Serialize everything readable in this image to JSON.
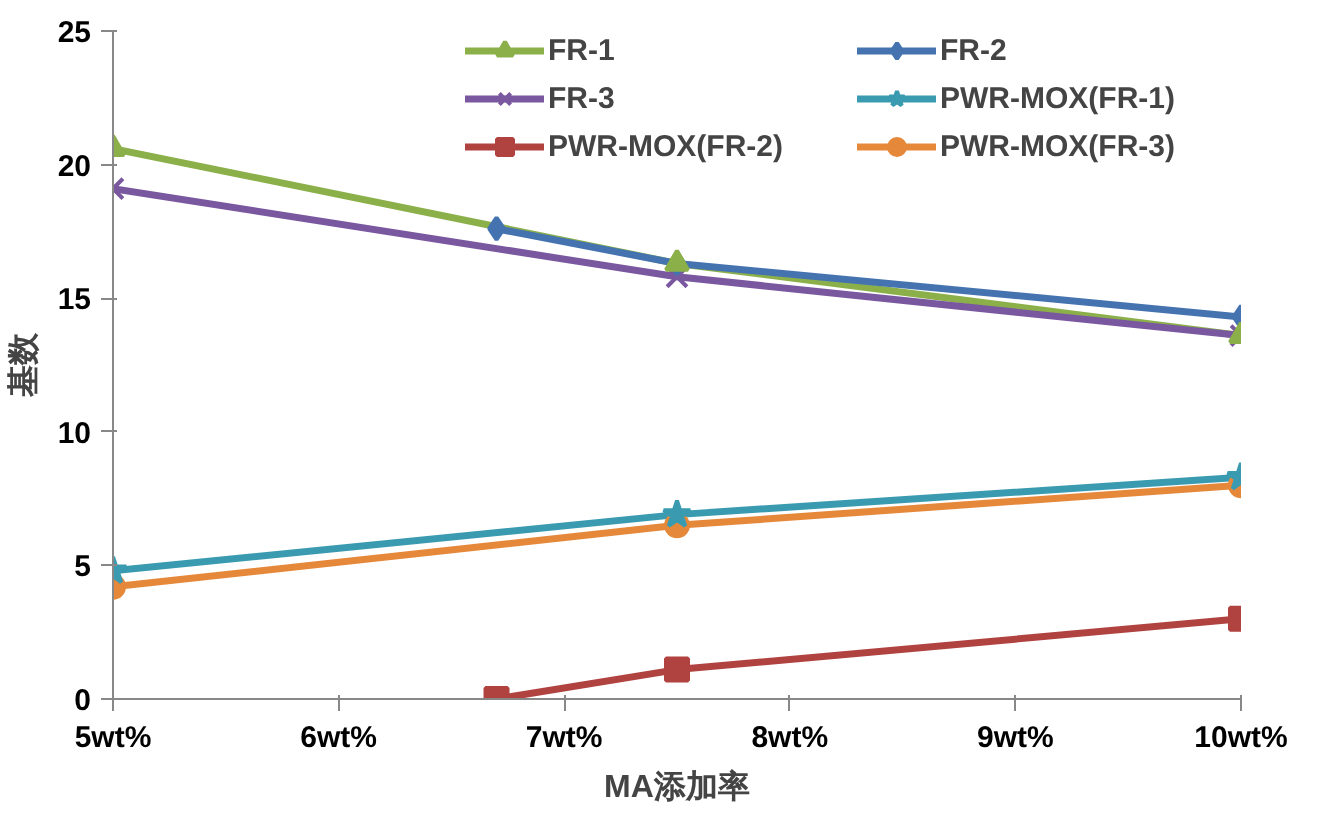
{
  "chart_data": {
    "type": "line",
    "xlabel": "MA添加率",
    "ylabel": "基数",
    "xlim": [
      5,
      10
    ],
    "ylim": [
      0,
      25
    ],
    "xticks": [
      {
        "value": 5,
        "label": "5wt%"
      },
      {
        "value": 6,
        "label": "6wt%"
      },
      {
        "value": 7,
        "label": "7wt%"
      },
      {
        "value": 8,
        "label": "8wt%"
      },
      {
        "value": 9,
        "label": "9wt%"
      },
      {
        "value": 10,
        "label": "10wt%"
      }
    ],
    "yticks": [
      0,
      5,
      10,
      15,
      20,
      25
    ],
    "grid": false,
    "legend": "top right",
    "line_style": "solid",
    "series": [
      {
        "name": "FR-1",
        "color": "#8bb04a",
        "marker": "triangle",
        "x": [
          5,
          7.5,
          10
        ],
        "values": [
          20.6,
          16.3,
          13.6
        ]
      },
      {
        "name": "FR-2",
        "color": "#4573b0",
        "marker": "diamond",
        "x": [
          6.7,
          7.5,
          10
        ],
        "values": [
          17.6,
          16.3,
          14.3
        ]
      },
      {
        "name": "FR-3",
        "color": "#7a58a0",
        "marker": "cross",
        "x": [
          5,
          7.5,
          10
        ],
        "values": [
          19.1,
          15.8,
          13.6
        ]
      },
      {
        "name": "PWR-MOX(FR-1)",
        "color": "#3a9bb0",
        "marker": "star",
        "x": [
          5,
          7.5,
          10
        ],
        "values": [
          4.8,
          6.9,
          8.3
        ]
      },
      {
        "name": "PWR-MOX(FR-2)",
        "color": "#b04340",
        "marker": "square",
        "x": [
          6.7,
          7.5,
          10
        ],
        "values": [
          0,
          1.1,
          3.0
        ]
      },
      {
        "name": "PWR-MOX(FR-3)",
        "color": "#e6883a",
        "marker": "circle",
        "x": [
          5,
          7.5,
          10
        ],
        "values": [
          4.2,
          6.5,
          8.0
        ]
      }
    ]
  }
}
